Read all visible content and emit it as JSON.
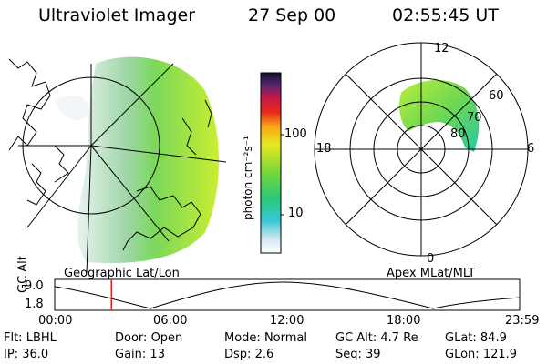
{
  "header": {
    "instrument": "Ultraviolet Imager",
    "date": "27 Sep 00",
    "time": "02:55:45 UT"
  },
  "colorbar": {
    "unit_label": "photon cm⁻²s⁻¹",
    "ticks": [
      "100",
      "10"
    ]
  },
  "left_panel": {
    "caption": "Geographic Lat/Lon"
  },
  "right_panel": {
    "caption": "Apex MLat/MLT",
    "mlt_labels": {
      "top": "12",
      "left": "18",
      "right": "6",
      "bottom": "0"
    },
    "lat_labels": [
      "60",
      "70",
      "80"
    ]
  },
  "timeline": {
    "ylabel": "GC Alt",
    "ytick": "9.0",
    "yticklow": "1.8",
    "xticks": [
      "00:00",
      "06:00",
      "12:00",
      "18:00",
      "23:59"
    ],
    "current_time_marker": 2.93
  },
  "status": {
    "row1": [
      {
        "label": "Flt:",
        "value": "LBHL"
      },
      {
        "label": "Door:",
        "value": "Open"
      },
      {
        "label": "Mode:",
        "value": "Normal"
      },
      {
        "label": "GC Alt:",
        "value": "4.7 Re"
      },
      {
        "label": "GLat:",
        "value": "84.9"
      }
    ],
    "row2": [
      {
        "label": "IP:",
        "value": "36.0"
      },
      {
        "label": "Gain:",
        "value": "13"
      },
      {
        "label": "Dsp:",
        "value": "2.6"
      },
      {
        "label": "Seq:",
        "value": "39"
      },
      {
        "label": "GLon:",
        "value": "121.9"
      }
    ]
  }
}
